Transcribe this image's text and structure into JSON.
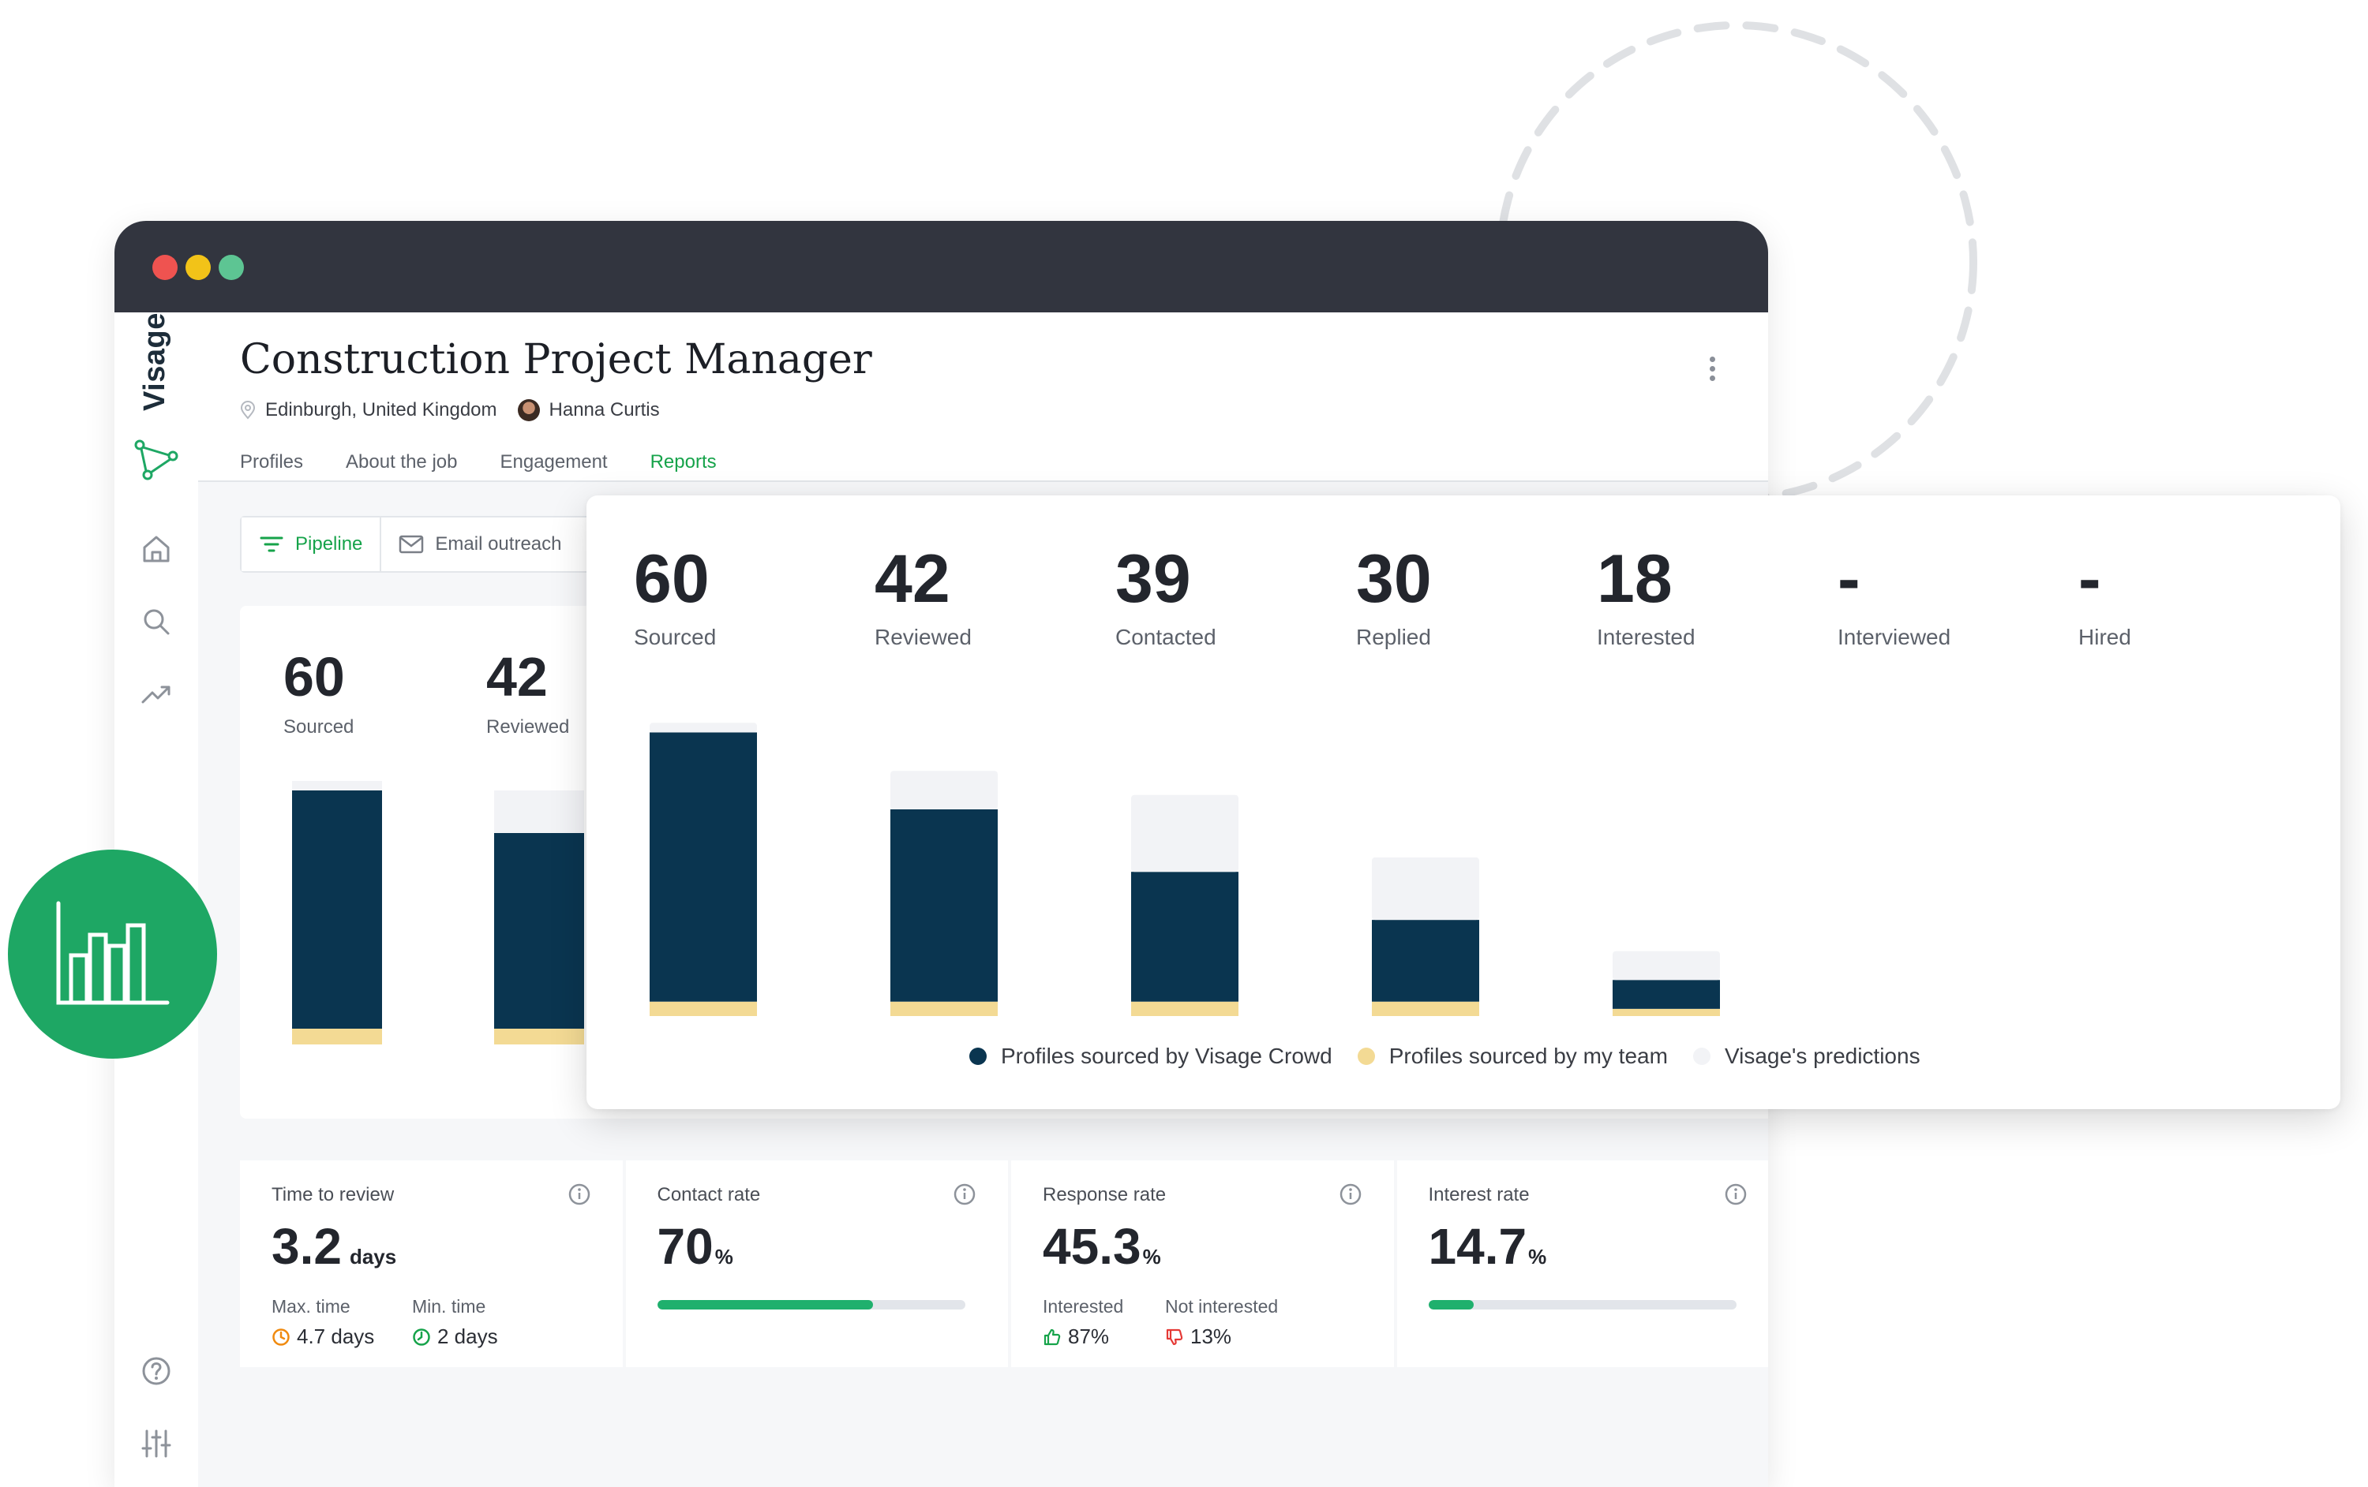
{
  "app": {
    "logo_text": "Visage"
  },
  "job": {
    "title": "Construction Project Manager",
    "location": "Edinburgh, United Kingdom",
    "owner": "Hanna Curtis"
  },
  "tabs": [
    {
      "label": "Profiles"
    },
    {
      "label": "About the job"
    },
    {
      "label": "Engagement"
    },
    {
      "label": "Reports",
      "active": true
    }
  ],
  "subnav": {
    "pipeline": "Pipeline",
    "email": "Email outreach"
  },
  "background_chart": {
    "stages": [
      {
        "value": "60",
        "label": "Sourced"
      },
      {
        "value": "42",
        "label": "Reviewed"
      }
    ]
  },
  "stats": {
    "time_to_review": {
      "title": "Time to review",
      "value": "3.2",
      "unit": "days",
      "max_label": "Max. time",
      "max_value": "4.7 days",
      "min_label": "Min. time",
      "min_value": "2 days"
    },
    "contact_rate": {
      "title": "Contact rate",
      "value": "70",
      "unit": "%",
      "fraction": 0.7
    },
    "response_rate": {
      "title": "Response rate",
      "value": "45.3",
      "unit": "%",
      "interested_label": "Interested",
      "interested_value": "87%",
      "not_interested_label": "Not interested",
      "not_interested_value": "13%"
    },
    "interest_rate": {
      "title": "Interest rate",
      "value": "14.7",
      "unit": "%",
      "fraction": 0.147
    }
  },
  "colors": {
    "crowd": "#0a3550",
    "team": "#f3da94",
    "prediction": "#f2f3f6",
    "accent": "#16a34a"
  },
  "chart_data": {
    "type": "bar",
    "stacked": true,
    "categories": [
      "Sourced",
      "Reviewed",
      "Contacted",
      "Replied",
      "Interested",
      "Interviewed",
      "Hired"
    ],
    "display_values": [
      "60",
      "42",
      "39",
      "30",
      "18",
      "-",
      "-"
    ],
    "series": [
      {
        "name": "Profiles sourced by Visage Crowd",
        "values": [
          56,
          40,
          27,
          17,
          6,
          0,
          0
        ]
      },
      {
        "name": "Profiles sourced by my team",
        "values": [
          3,
          3,
          3,
          3,
          1.5,
          0,
          0
        ]
      },
      {
        "name": "Visage's predictions",
        "values": [
          2,
          8,
          16,
          13,
          6,
          0,
          0
        ]
      }
    ],
    "ylim": [
      0,
      64
    ]
  }
}
